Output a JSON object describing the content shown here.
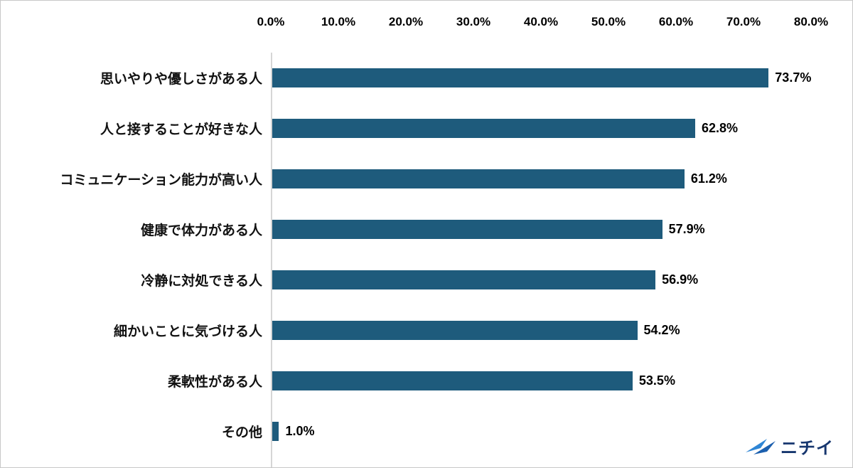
{
  "chart_data": {
    "type": "bar",
    "orientation": "horizontal",
    "title": "",
    "xlabel": "",
    "ylabel": "",
    "xlim": [
      0,
      80
    ],
    "grid": false,
    "axis_position": "top",
    "bar_color": "#1e5b7c",
    "x_ticks": [
      "0.0%",
      "10.0%",
      "20.0%",
      "30.0%",
      "40.0%",
      "50.0%",
      "60.0%",
      "70.0%",
      "80.0%"
    ],
    "categories": [
      "思いやりや優しさがある人",
      "人と接することが好きな人",
      "コミュニケーション能力が高い人",
      "健康で体力がある人",
      "冷静に対処できる人",
      "細かいことに気づける人",
      "柔軟性がある人",
      "その他"
    ],
    "values": [
      73.7,
      62.8,
      61.2,
      57.9,
      56.9,
      54.2,
      53.5,
      1.0
    ],
    "value_labels": [
      "73.7%",
      "62.8%",
      "61.2%",
      "57.9%",
      "56.9%",
      "54.2%",
      "53.5%",
      "1.0%"
    ]
  },
  "branding": {
    "logo_text": "ニチイ",
    "logo_text_color": "#16366e",
    "logo_mark_color_light": "#2f86d5",
    "logo_mark_color_dark": "#1b5fae"
  }
}
